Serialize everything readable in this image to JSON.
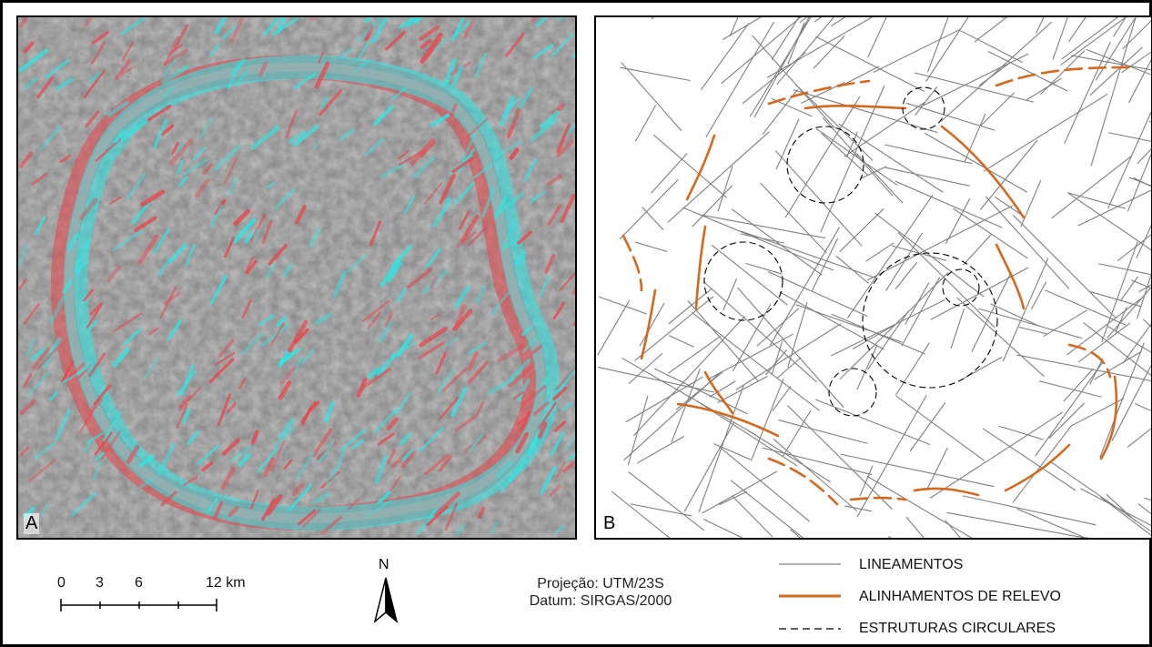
{
  "panel_a": {
    "letter": "A"
  },
  "panel_b": {
    "letter": "B"
  },
  "scale_bar": {
    "ticks": [
      "0",
      "3",
      "6",
      "12 km"
    ]
  },
  "north_arrow": {
    "label": "N"
  },
  "projection": {
    "line1": "Projeção: UTM/23S",
    "line2": "Datum: SIRGAS/2000"
  },
  "legend": [
    {
      "label": "LINEAMENTOS",
      "style": "solid",
      "color": "#7f7f7f"
    },
    {
      "label": "ALINHAMENTOS DE RELEVO",
      "style": "solid",
      "color": "#d2691e"
    },
    {
      "label": "ESTRUTURAS CIRCULARES",
      "style": "dashed",
      "color": "#000000"
    }
  ],
  "colors": {
    "anaglyph_red": "#e8454b",
    "anaglyph_cyan": "#2ee6e6",
    "relief_gray": "#8e8e8e"
  }
}
